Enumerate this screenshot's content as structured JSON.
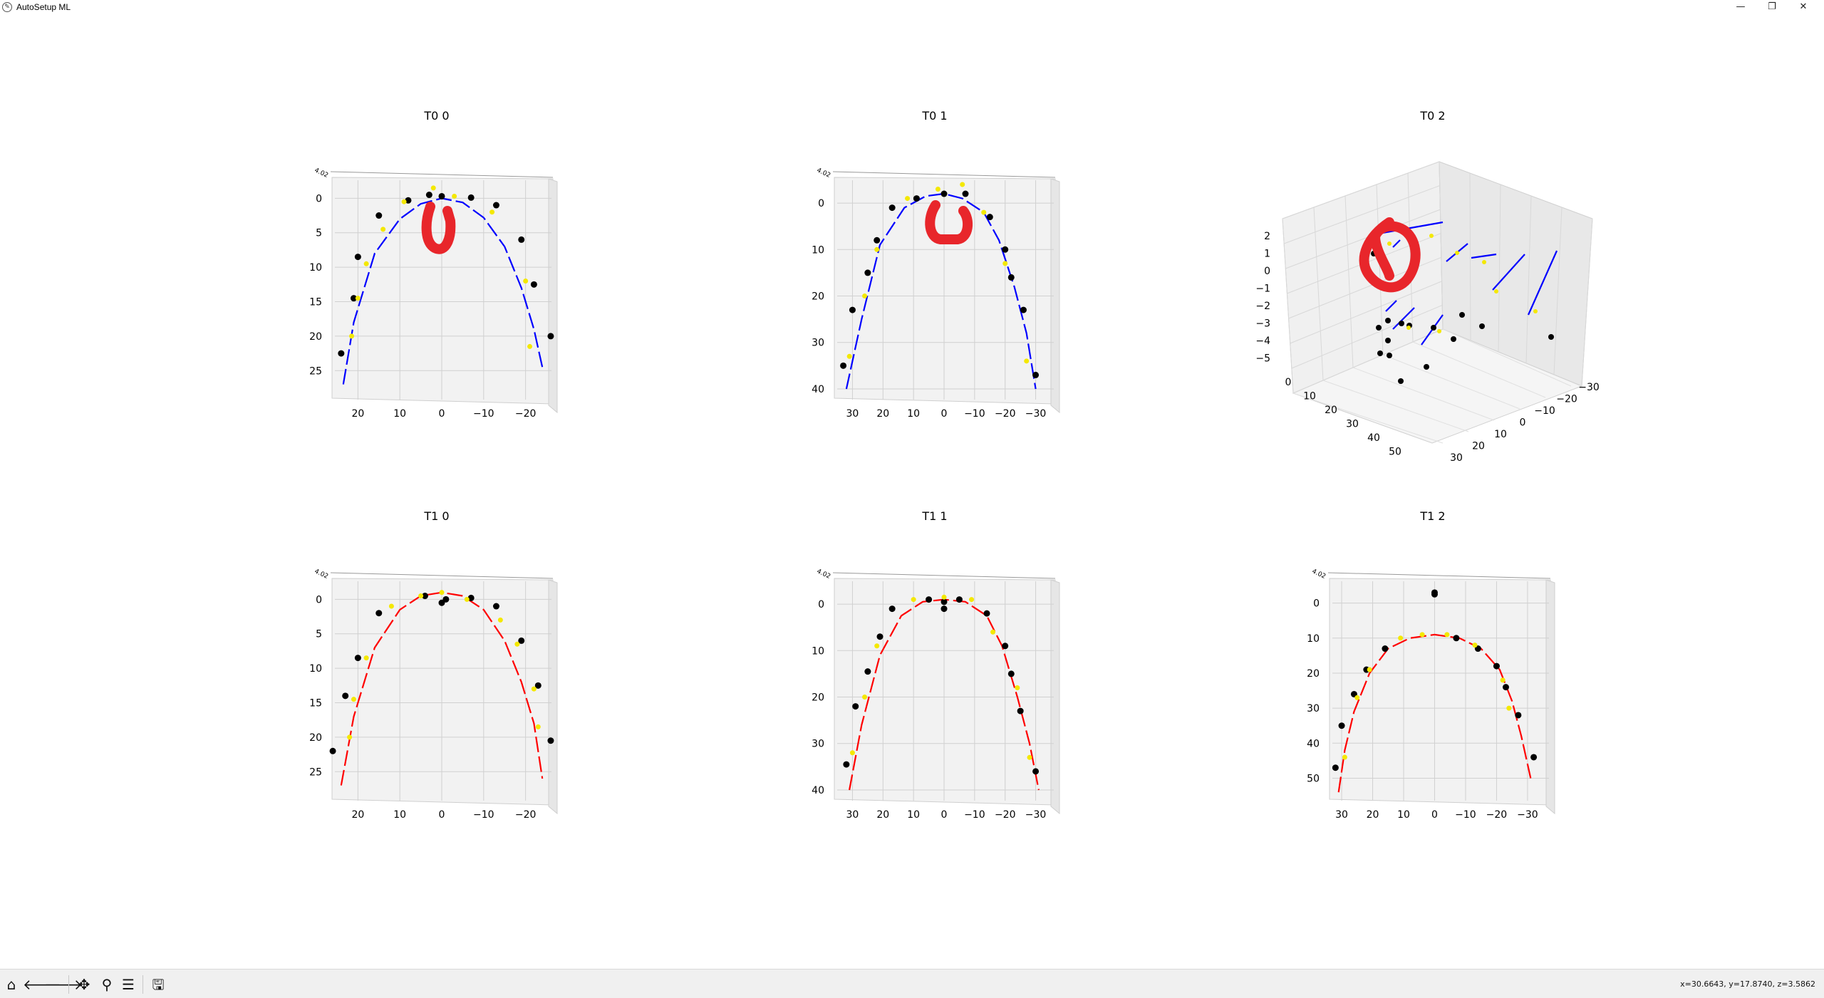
{
  "window": {
    "title": "AutoSetup ML",
    "app_icon": "feather-icon",
    "buttons": {
      "minimize": "—",
      "restore": "❐",
      "close": "✕"
    }
  },
  "figure": {
    "plots": [
      {
        "title": "T0 0",
        "kind": "2d",
        "xticks": [
          "20",
          "10",
          "0",
          "−10",
          "−20"
        ],
        "yticks": [
          "0",
          "5",
          "10",
          "15",
          "20",
          "25"
        ],
        "xlim": [
          25.5,
          -25.5
        ],
        "ylim": [
          -2,
          29
        ],
        "color": "#0000ff",
        "fit": [
          [
            23.5,
            27
          ],
          [
            21,
            18
          ],
          [
            16,
            8
          ],
          [
            10,
            3
          ],
          [
            5,
            0.8
          ],
          [
            0,
            0
          ],
          [
            -5,
            0.6
          ],
          [
            -10,
            2.8
          ],
          [
            -15,
            7
          ],
          [
            -19,
            13
          ],
          [
            -22,
            19
          ],
          [
            -24,
            24.5
          ]
        ],
        "black": [
          [
            24,
            22.5
          ],
          [
            21,
            14.5
          ],
          [
            20,
            8.5
          ],
          [
            15,
            2.5
          ],
          [
            8,
            0.3
          ],
          [
            3,
            -0.5
          ],
          [
            0,
            -0.3
          ],
          [
            -7,
            -0.1
          ],
          [
            -13,
            1
          ],
          [
            -19,
            6
          ],
          [
            -22,
            12.5
          ],
          [
            -26,
            20
          ]
        ],
        "yellow": [
          [
            21.5,
            20
          ],
          [
            20,
            14.5
          ],
          [
            18,
            9.5
          ],
          [
            14,
            4.5
          ],
          [
            9,
            0.5
          ],
          [
            2,
            -1.5
          ],
          [
            -3,
            -0.3
          ],
          [
            -12,
            2
          ],
          [
            -20,
            12
          ],
          [
            -21,
            21.5
          ]
        ]
      },
      {
        "title": "T0 1",
        "kind": "2d",
        "xticks": [
          "30",
          "20",
          "10",
          "0",
          "−10",
          "−20",
          "−30"
        ],
        "yticks": [
          "0",
          "10",
          "20",
          "30",
          "40"
        ],
        "xlim": [
          35,
          -35
        ],
        "ylim": [
          -4,
          42
        ],
        "color": "#0000ff",
        "fit": [
          [
            32,
            40
          ],
          [
            27,
            25
          ],
          [
            21,
            9
          ],
          [
            13,
            1
          ],
          [
            6,
            -1.5
          ],
          [
            0,
            -2
          ],
          [
            -6,
            -1
          ],
          [
            -13,
            2
          ],
          [
            -18,
            8
          ],
          [
            -23,
            18
          ],
          [
            -27,
            28
          ],
          [
            -30,
            40
          ]
        ],
        "black": [
          [
            33,
            35
          ],
          [
            30,
            23
          ],
          [
            25,
            15
          ],
          [
            22,
            8
          ],
          [
            17,
            1
          ],
          [
            9,
            -1
          ],
          [
            0,
            -2
          ],
          [
            -7,
            -2
          ],
          [
            -15,
            3
          ],
          [
            -20,
            10
          ],
          [
            -22,
            16
          ],
          [
            -26,
            23
          ],
          [
            -30,
            37
          ]
        ],
        "yellow": [
          [
            31,
            33
          ],
          [
            26,
            20
          ],
          [
            22,
            10
          ],
          [
            12,
            -1
          ],
          [
            2,
            -3
          ],
          [
            -6,
            -4
          ],
          [
            -13,
            2
          ],
          [
            -20,
            13
          ],
          [
            -27,
            34
          ]
        ]
      },
      {
        "title": "T0 2",
        "kind": "3d",
        "zticks": [
          "2",
          "1",
          "0",
          "−1",
          "−2",
          "−3",
          "−4",
          "−5"
        ],
        "xticks": [
          "0",
          "10",
          "20",
          "30",
          "40",
          "50"
        ],
        "yticks": [
          "−30",
          "−20",
          "−10",
          "0",
          "10",
          "20",
          "30"
        ],
        "color": "#0000ff"
      },
      {
        "title": "T1 0",
        "kind": "2d",
        "xticks": [
          "20",
          "10",
          "0",
          "−10",
          "−20"
        ],
        "yticks": [
          "0",
          "5",
          "10",
          "15",
          "20",
          "25"
        ],
        "xlim": [
          25.5,
          -25.5
        ],
        "ylim": [
          -2,
          29
        ],
        "color": "#ff0000",
        "fit": [
          [
            24,
            27
          ],
          [
            21,
            17
          ],
          [
            16,
            7
          ],
          [
            10,
            1.5
          ],
          [
            5,
            -0.5
          ],
          [
            0,
            -1
          ],
          [
            -5,
            -0.5
          ],
          [
            -10,
            1.5
          ],
          [
            -15,
            6
          ],
          [
            -19,
            12
          ],
          [
            -22,
            18
          ],
          [
            -24,
            26
          ]
        ],
        "black": [
          [
            26,
            22
          ],
          [
            23,
            14
          ],
          [
            20,
            8.5
          ],
          [
            15,
            2
          ],
          [
            4,
            -0.5
          ],
          [
            0,
            0.5
          ],
          [
            -1,
            0
          ],
          [
            -7,
            -0.2
          ],
          [
            -13,
            1
          ],
          [
            -19,
            6
          ],
          [
            -23,
            12.5
          ],
          [
            -26,
            20.5
          ]
        ],
        "yellow": [
          [
            22,
            20
          ],
          [
            21,
            14.5
          ],
          [
            18,
            8.5
          ],
          [
            12,
            1
          ],
          [
            5,
            -0.5
          ],
          [
            0,
            -1
          ],
          [
            -6,
            0
          ],
          [
            -14,
            3
          ],
          [
            -18,
            6.5
          ],
          [
            -22,
            13
          ],
          [
            -23,
            18.5
          ]
        ]
      },
      {
        "title": "T1 1",
        "kind": "2d",
        "xticks": [
          "30",
          "20",
          "10",
          "0",
          "−10",
          "−20",
          "−30"
        ],
        "yticks": [
          "0",
          "10",
          "20",
          "30",
          "40"
        ],
        "xlim": [
          35,
          -35
        ],
        "ylim": [
          -4,
          42
        ],
        "color": "#ff0000",
        "fit": [
          [
            31,
            40
          ],
          [
            27,
            26
          ],
          [
            21,
            11
          ],
          [
            14,
            2.5
          ],
          [
            7,
            -0.5
          ],
          [
            0,
            -1
          ],
          [
            -7,
            -0.5
          ],
          [
            -14,
            2.5
          ],
          [
            -19,
            9
          ],
          [
            -24,
            20
          ],
          [
            -28,
            30
          ],
          [
            -31,
            40
          ]
        ],
        "black": [
          [
            32,
            34.5
          ],
          [
            29,
            22
          ],
          [
            25,
            14.5
          ],
          [
            21,
            7
          ],
          [
            17,
            1
          ],
          [
            5,
            -1
          ],
          [
            0,
            -0.5
          ],
          [
            0,
            1
          ],
          [
            -5,
            -1
          ],
          [
            -14,
            2
          ],
          [
            -20,
            9
          ],
          [
            -22,
            15
          ],
          [
            -25,
            23
          ],
          [
            -30,
            36
          ]
        ],
        "yellow": [
          [
            30,
            32
          ],
          [
            26,
            20
          ],
          [
            22,
            9
          ],
          [
            10,
            -1
          ],
          [
            0,
            -1.5
          ],
          [
            -9,
            -1
          ],
          [
            -16,
            6
          ],
          [
            -24,
            18
          ],
          [
            -28,
            33
          ]
        ]
      },
      {
        "title": "T1 2",
        "kind": "2d",
        "xticks": [
          "30",
          "20",
          "10",
          "0",
          "−10",
          "−20",
          "−30"
        ],
        "yticks": [
          "0",
          "10",
          "20",
          "30",
          "40",
          "50"
        ],
        "xlim": [
          33,
          -36
        ],
        "ylim": [
          -5,
          56
        ],
        "color": "#ff0000",
        "fit": [
          [
            31,
            54
          ],
          [
            29,
            42
          ],
          [
            26,
            31
          ],
          [
            21,
            20
          ],
          [
            15,
            13
          ],
          [
            8,
            10
          ],
          [
            0,
            9
          ],
          [
            -8,
            10
          ],
          [
            -15,
            13
          ],
          [
            -21,
            19
          ],
          [
            -25,
            28
          ],
          [
            -28,
            38
          ],
          [
            -31,
            50
          ]
        ],
        "black": [
          [
            32,
            47
          ],
          [
            30,
            35
          ],
          [
            26,
            26
          ],
          [
            22,
            19
          ],
          [
            16,
            13
          ],
          [
            0,
            -3
          ],
          [
            0,
            -2.5
          ],
          [
            -7,
            10
          ],
          [
            -14,
            13
          ],
          [
            -20,
            18
          ],
          [
            -23,
            24
          ],
          [
            -27,
            32
          ],
          [
            -32,
            44
          ]
        ],
        "yellow": [
          [
            29,
            44
          ],
          [
            25,
            27
          ],
          [
            21,
            19
          ],
          [
            11,
            10
          ],
          [
            4,
            9
          ],
          [
            -4,
            9
          ],
          [
            -13,
            12
          ],
          [
            -22,
            22
          ],
          [
            -24,
            30
          ]
        ]
      }
    ],
    "annotations": [
      {
        "plot_index": 0,
        "shape": "U",
        "color": "#e8262b"
      },
      {
        "plot_index": 1,
        "shape": "U",
        "color": "#e8262b"
      },
      {
        "plot_index": 2,
        "shape": "loop",
        "color": "#e8262b"
      }
    ]
  },
  "toolbar": {
    "home": "home-icon",
    "back": "arrow-left-icon",
    "forward": "arrow-right-icon",
    "pan": "move-icon",
    "zoom": "zoom-icon",
    "configure": "sliders-icon",
    "save": "save-icon",
    "coords": "x=30.6643, y=17.8740, z=3.5862"
  }
}
